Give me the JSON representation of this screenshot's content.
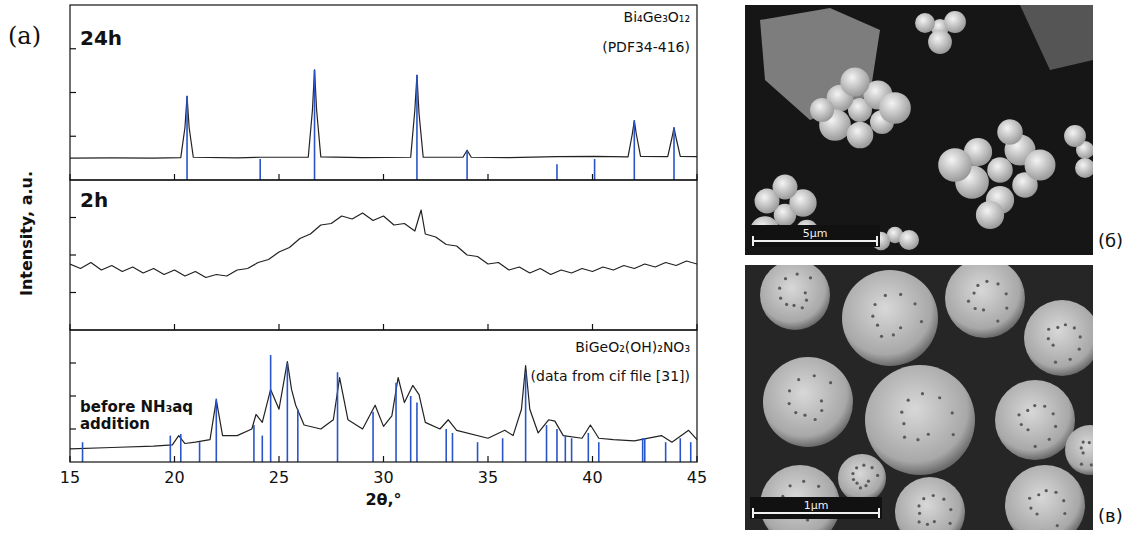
{
  "figure_label": "(a)",
  "chart_data": [
    {
      "type": "line",
      "title": "24h",
      "annotations": [
        "Bi₄Ge₃O₁₂",
        "(PDF34-416)"
      ],
      "xlim": [
        15,
        45
      ],
      "xticks": [
        15,
        20,
        25,
        30,
        35,
        40,
        45
      ],
      "ylim": [
        0,
        100
      ],
      "yticks": [
        25,
        50,
        75
      ],
      "tick_labels": false,
      "series": [
        {
          "type": "line",
          "color": "#222222",
          "x": [
            15,
            17,
            19,
            20.3,
            20.5,
            20.6,
            20.7,
            20.9,
            23,
            24.1,
            26.4,
            26.6,
            26.7,
            26.8,
            27,
            29,
            31.3,
            31.5,
            31.6,
            31.7,
            31.9,
            33.8,
            34,
            34.2,
            36,
            38.3,
            40.1,
            41.7,
            41.9,
            42,
            42.1,
            42.3,
            43.6,
            43.8,
            43.9,
            44,
            44.2,
            45
          ],
          "values": [
            12.5,
            12.6,
            12.5,
            12.8,
            30,
            48,
            30,
            13,
            12.7,
            13,
            13,
            40,
            63,
            40,
            13.2,
            12.8,
            13,
            40,
            60,
            38,
            13,
            13,
            17,
            13,
            12.8,
            13.3,
            13.5,
            13.2,
            26,
            34,
            26,
            13.5,
            13.3,
            24,
            30,
            24,
            13.5,
            13.3
          ]
        },
        {
          "type": "stick",
          "color": "#2a55c8",
          "x": [
            20.6,
            24.1,
            26.7,
            31.6,
            34.0,
            38.3,
            40.1,
            42.0,
            43.9
          ],
          "values": [
            48,
            12,
            63,
            60,
            17,
            9,
            12,
            34,
            30
          ]
        }
      ]
    },
    {
      "type": "line",
      "title": "2h",
      "ylabel": "Intensity, a.u.",
      "xlim": [
        15,
        45
      ],
      "xticks": [
        15,
        20,
        25,
        30,
        35,
        40,
        45
      ],
      "ylim": [
        0,
        100
      ],
      "yticks": [
        25,
        50,
        75
      ],
      "tick_labels": false,
      "series": [
        {
          "type": "line",
          "color": "#222222",
          "x": [
            15,
            15.5,
            16,
            16.5,
            17,
            17.5,
            18,
            18.5,
            19,
            19.5,
            20,
            20.5,
            21,
            21.5,
            22,
            22.5,
            23,
            23.5,
            24,
            24.5,
            25,
            25.5,
            26,
            26.5,
            27,
            27.5,
            28,
            28.5,
            29,
            29.5,
            30,
            30.5,
            31,
            31.5,
            31.8,
            32,
            32.5,
            33,
            33.5,
            34,
            34.5,
            35,
            35.5,
            36,
            36.5,
            37,
            37.5,
            38,
            38.5,
            39,
            39.5,
            40,
            40.5,
            41,
            41.5,
            42,
            42.5,
            43,
            43.5,
            44,
            44.5,
            45
          ],
          "values": [
            44,
            41,
            45,
            40,
            43,
            39,
            42,
            38,
            41,
            37,
            40,
            36,
            39,
            35,
            37,
            36,
            40,
            41,
            45,
            47,
            52,
            55,
            61,
            64,
            70,
            71,
            76,
            74,
            78,
            73,
            76,
            70,
            71,
            66,
            80,
            64,
            62,
            57,
            56,
            50,
            49,
            44,
            45,
            40,
            42,
            38,
            41,
            37,
            40,
            38,
            41,
            39,
            42,
            40,
            43,
            41,
            44,
            42,
            45,
            43,
            46,
            44
          ]
        }
      ]
    },
    {
      "type": "line",
      "title": "before NH₃aq addition",
      "annotations": [
        "BiGeO₂(OH)₂NO₃",
        "(data from cif file [31])"
      ],
      "xlabel": "2θ,°",
      "xlim": [
        15,
        45
      ],
      "xticks": [
        15,
        20,
        25,
        30,
        35,
        40,
        45
      ],
      "ylim": [
        0,
        100
      ],
      "yticks": [
        25,
        50,
        75
      ],
      "tick_labels": "x",
      "series": [
        {
          "type": "line",
          "color": "#222222",
          "x": [
            15,
            17,
            19,
            19.9,
            20.2,
            20.5,
            21,
            21.7,
            22,
            22.3,
            23,
            23.7,
            23.9,
            24.2,
            24.6,
            25,
            25.4,
            25.6,
            25.8,
            26.2,
            27,
            27.6,
            27.9,
            28.3,
            29,
            29.6,
            30,
            30.4,
            30.7,
            31,
            31.4,
            31.7,
            32,
            32.7,
            33.1,
            33.5,
            35,
            35.8,
            36.2,
            36.6,
            36.8,
            37,
            37.4,
            37.9,
            38.2,
            38.6,
            39.5,
            39.9,
            40.3,
            41,
            42,
            43.3,
            43.8,
            44.6,
            45
          ],
          "values": [
            10,
            11,
            12,
            13,
            20,
            14,
            15,
            17,
            47,
            20,
            20,
            25,
            36,
            30,
            55,
            40,
            76,
            55,
            43,
            28,
            25,
            32,
            64,
            32,
            25,
            43,
            27,
            35,
            64,
            45,
            58,
            51,
            30,
            25,
            32,
            24,
            18,
            24,
            20,
            40,
            73,
            40,
            22,
            32,
            31,
            20,
            18,
            28,
            18,
            17,
            16,
            20,
            15,
            24,
            17
          ]
        },
        {
          "type": "stick",
          "color": "#2a55c8",
          "x": [
            15.6,
            19.8,
            20.3,
            21.2,
            22.0,
            23.8,
            24.2,
            24.6,
            25.4,
            25.9,
            27.8,
            29.5,
            30.6,
            31.3,
            31.6,
            33.0,
            33.3,
            34.5,
            35.7,
            36.8,
            37.8,
            38.3,
            38.7,
            39.0,
            39.8,
            40.3,
            42.4,
            42.5,
            43.5,
            44.2,
            44.7
          ],
          "values": [
            15,
            20,
            25,
            15,
            48,
            28,
            20,
            81,
            75,
            40,
            68,
            38,
            60,
            50,
            45,
            25,
            22,
            15,
            18,
            68,
            28,
            25,
            20,
            18,
            22,
            15,
            18,
            18,
            15,
            18,
            15
          ]
        }
      ]
    }
  ],
  "images": [
    {
      "label": "(б)",
      "scale_bar": "5µm"
    },
    {
      "label": "(в)",
      "scale_bar": "1µm"
    }
  ]
}
